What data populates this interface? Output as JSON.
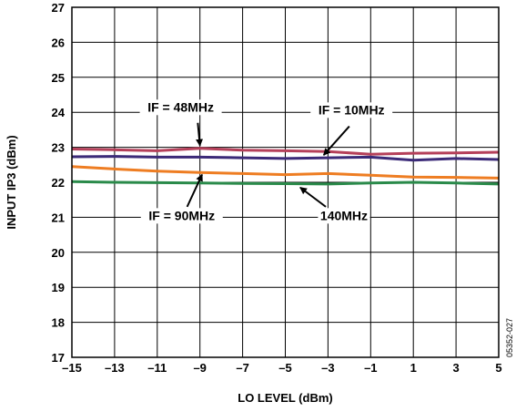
{
  "chart_data": {
    "type": "line",
    "title": "",
    "xlabel": "LO LEVEL (dBm)",
    "ylabel": "INPUT IP3 (dBm)",
    "xlim": [
      -15,
      5
    ],
    "ylim": [
      17,
      27
    ],
    "grid": true,
    "x_ticks": [
      -15,
      -13,
      -11,
      -9,
      -7,
      -5,
      -3,
      -1,
      1,
      3,
      5
    ],
    "x_tick_labels": [
      "–15",
      "–13",
      "–11",
      "–9",
      "–7",
      "–5",
      "–3",
      "–1",
      "1",
      "3",
      "5"
    ],
    "y_ticks": [
      17,
      18,
      19,
      20,
      21,
      22,
      23,
      24,
      25,
      26,
      27
    ],
    "y_tick_labels": [
      "17",
      "18",
      "19",
      "20",
      "21",
      "22",
      "23",
      "24",
      "25",
      "26",
      "27"
    ],
    "x": [
      -15,
      -13,
      -11,
      -9,
      -7,
      -5,
      -3,
      -1,
      1,
      3,
      5
    ],
    "series": [
      {
        "name": "IF = 48MHz",
        "color": "#b5405a",
        "values": [
          22.95,
          22.93,
          22.9,
          22.97,
          22.92,
          22.9,
          22.88,
          22.8,
          22.83,
          22.84,
          22.86
        ]
      },
      {
        "name": "IF = 10MHz",
        "color": "#3b2a78",
        "values": [
          22.73,
          22.74,
          22.72,
          22.72,
          22.7,
          22.68,
          22.7,
          22.72,
          22.63,
          22.68,
          22.65
        ]
      },
      {
        "name": "IF = 90MHz",
        "color": "#ee7d22",
        "values": [
          22.45,
          22.38,
          22.32,
          22.28,
          22.25,
          22.22,
          22.25,
          22.2,
          22.15,
          22.14,
          22.12
        ]
      },
      {
        "name": "140MHz",
        "color": "#2a8a4a",
        "values": [
          22.02,
          22.0,
          21.99,
          21.98,
          21.97,
          21.96,
          21.95,
          21.98,
          22.0,
          21.98,
          21.95
        ]
      }
    ],
    "annotations": [
      {
        "text": "IF = 48MHz",
        "series": 0
      },
      {
        "text": "IF = 10MHz",
        "series": 1
      },
      {
        "text": "IF = 90MHz",
        "series": 2
      },
      {
        "text": "140MHz",
        "series": 3
      }
    ],
    "figure_code": "05352-027"
  }
}
